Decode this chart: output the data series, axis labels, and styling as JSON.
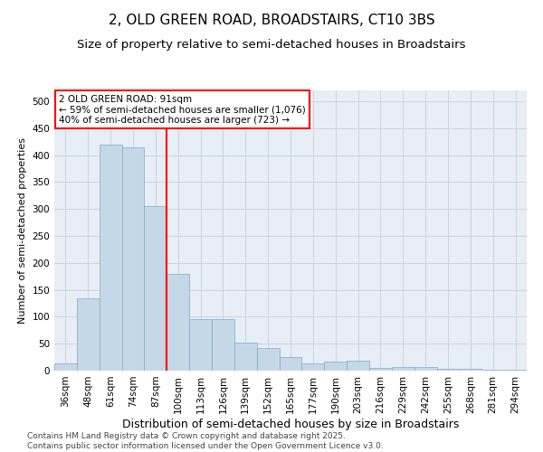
{
  "title1": "2, OLD GREEN ROAD, BROADSTAIRS, CT10 3BS",
  "title2": "Size of property relative to semi-detached houses in Broadstairs",
  "xlabel": "Distribution of semi-detached houses by size in Broadstairs",
  "ylabel": "Number of semi-detached properties",
  "categories": [
    "36sqm",
    "48sqm",
    "61sqm",
    "74sqm",
    "87sqm",
    "100sqm",
    "113sqm",
    "126sqm",
    "139sqm",
    "152sqm",
    "165sqm",
    "177sqm",
    "190sqm",
    "203sqm",
    "216sqm",
    "229sqm",
    "242sqm",
    "255sqm",
    "268sqm",
    "281sqm",
    "294sqm"
  ],
  "values": [
    13,
    135,
    420,
    415,
    305,
    180,
    95,
    95,
    52,
    42,
    25,
    13,
    17,
    18,
    5,
    6,
    6,
    3,
    3,
    2,
    2
  ],
  "bar_color": "#c5d8e8",
  "bar_edge_color": "#7baac8",
  "red_line_index": 4,
  "red_line_label": "2 OLD GREEN ROAD: 91sqm",
  "annotation_line1": "← 59% of semi-detached houses are smaller (1,076)",
  "annotation_line2": "40% of semi-detached houses are larger (723) →",
  "annotation_box_color": "white",
  "annotation_box_edge": "red",
  "vline_color": "red",
  "ylim": [
    0,
    520
  ],
  "yticks": [
    0,
    50,
    100,
    150,
    200,
    250,
    300,
    350,
    400,
    450,
    500
  ],
  "grid_color": "#c8d4e0",
  "background_color": "#e8eef5",
  "footer": "Contains HM Land Registry data © Crown copyright and database right 2025.\nContains public sector information licensed under the Open Government Licence v3.0.",
  "title1_fontsize": 11,
  "title2_fontsize": 9.5,
  "xlabel_fontsize": 9,
  "ylabel_fontsize": 8,
  "tick_fontsize": 7.5,
  "annotation_fontsize": 7.5,
  "footer_fontsize": 6.5
}
